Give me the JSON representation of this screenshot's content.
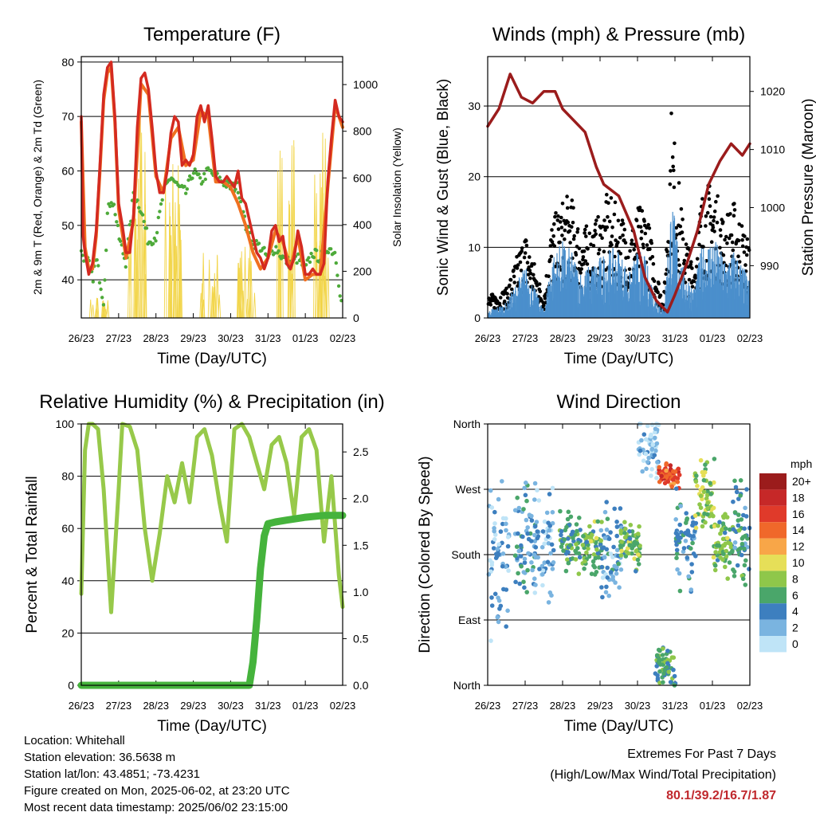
{
  "x_tick_labels": [
    "26/23",
    "27/23",
    "28/23",
    "29/23",
    "30/23",
    "31/23",
    "01/23",
    "02/23"
  ],
  "charts": [
    {
      "id": "temperature",
      "title": "Temperature (F)",
      "xlabel": "Time (Day/UTC)",
      "ylabel": "2m & 9m T (Red, Orange) & 2m Td (Green)",
      "ylabel_right": "Solar Insolation (Yellow)",
      "yticks": [
        "40",
        "50",
        "60",
        "70",
        "80"
      ],
      "yticks_right": [
        "0",
        "200",
        "400",
        "600",
        "800",
        "1000"
      ]
    },
    {
      "id": "winds",
      "title": "Winds (mph) & Pressure (mb)",
      "xlabel": "Time (Day/UTC)",
      "ylabel": "Sonic Wind & Gust (Blue, Black)",
      "ylabel_right": "Station Pressure (Maroon)",
      "yticks": [
        "0",
        "10",
        "20",
        "30"
      ],
      "yticks_right": [
        "990",
        "1000",
        "1010",
        "1020"
      ]
    },
    {
      "id": "humidity",
      "title": "Relative Humidity (%) & Precipitation (in)",
      "xlabel": "Time (Day/UTC)",
      "ylabel": "Percent & Total Rainfall",
      "yticks": [
        "0",
        "20",
        "40",
        "60",
        "80",
        "100"
      ],
      "yticks_right": [
        "0.0",
        "0.5",
        "1.0",
        "1.5",
        "2.0",
        "2.5"
      ]
    },
    {
      "id": "direction",
      "title": "Wind Direction",
      "xlabel": "Time (Day/UTC)",
      "ylabel": "Direction (Colored By Speed)",
      "yticks": [
        "North",
        "East",
        "South",
        "West",
        "North"
      ],
      "legend_title": "mph",
      "legend_labels": [
        "20+",
        "18",
        "16",
        "14",
        "12",
        "10",
        "8",
        "6",
        "4",
        "2",
        "0"
      ]
    }
  ],
  "chart_data": [
    {
      "type": "line",
      "title": "Temperature (F)",
      "x_ticks": [
        "26/23",
        "27/23",
        "28/23",
        "29/23",
        "30/23",
        "31/23",
        "01/23",
        "02/23"
      ],
      "xlabel": "Time (Day/UTC)",
      "ylabel": "2m & 9m T (Red, Orange) & 2m Td (Green)",
      "ylim": [
        33,
        81
      ],
      "y2label": "Solar Insolation (Yellow)",
      "y2lim": [
        0,
        1120
      ],
      "series": [
        {
          "color": "#d42a20",
          "axis": "left",
          "x": [
            0,
            0.05,
            0.1,
            0.2,
            0.3,
            0.4,
            0.5,
            0.6,
            0.7,
            0.8,
            0.9,
            1.0,
            1.1,
            1.2,
            1.3,
            1.4,
            1.5,
            1.6,
            1.7,
            1.8,
            1.9,
            2.0,
            2.1,
            2.2,
            2.3,
            2.4,
            2.5,
            2.6,
            2.7,
            2.8,
            2.9,
            3.0,
            3.1,
            3.2,
            3.3,
            3.4,
            3.5,
            3.6,
            3.7,
            3.8,
            3.9,
            4.0,
            4.1,
            4.2,
            4.3,
            4.4,
            4.5,
            4.6,
            4.7,
            4.8,
            4.9,
            5.0,
            5.1,
            5.2,
            5.3,
            5.4,
            5.5,
            5.6,
            5.7,
            5.8,
            5.9,
            6.0,
            6.1,
            6.2,
            6.3,
            6.4,
            6.5,
            6.6,
            6.7,
            6.8,
            6.9,
            7.0
          ],
          "y": [
            70,
            48,
            45,
            41,
            43,
            49,
            61,
            74,
            79,
            80,
            70,
            54,
            50,
            45,
            45,
            52,
            68,
            77,
            78,
            75,
            68,
            60,
            56,
            56,
            60,
            67,
            70,
            69,
            61,
            62,
            61,
            63,
            70,
            72,
            69,
            72,
            66,
            59,
            58,
            58,
            59,
            58,
            57,
            60,
            55,
            54,
            51,
            48,
            45,
            44,
            42,
            44,
            49,
            50,
            47,
            48,
            43,
            42,
            44,
            49,
            46,
            41,
            41,
            42,
            41,
            41,
            43,
            58,
            66,
            73,
            70,
            69
          ]
        },
        {
          "color": "#f07020",
          "axis": "left",
          "x": [
            0,
            0.1,
            0.2,
            0.3,
            0.4,
            0.5,
            0.6,
            0.7,
            0.8,
            0.9,
            1.0,
            1.2,
            1.4,
            1.6,
            1.8,
            2.0,
            2.2,
            2.4,
            2.6,
            2.8,
            3.0,
            3.2,
            3.4,
            3.6,
            3.8,
            4.0,
            4.2,
            4.4,
            4.6,
            4.8,
            5.0,
            5.2,
            5.4,
            5.6,
            5.8,
            6.0,
            6.2,
            6.4,
            6.6,
            6.8,
            7.0
          ],
          "y": [
            69,
            46,
            42,
            42,
            48,
            60,
            73,
            78,
            79,
            69,
            53,
            44,
            51,
            76,
            74,
            59,
            56,
            66,
            68,
            61,
            62,
            71,
            70,
            58,
            58,
            57,
            54,
            50,
            45,
            42,
            44,
            49,
            47,
            42,
            48,
            40,
            41,
            41,
            57,
            72,
            68
          ]
        },
        {
          "color": "#4eaa3a",
          "axis": "left",
          "x": [
            0,
            0.1,
            0.2,
            0.3,
            0.4,
            0.5,
            0.6,
            0.7,
            0.8,
            0.9,
            1.0,
            1.2,
            1.4,
            1.6,
            1.8,
            2.0,
            2.2,
            2.4,
            2.6,
            2.8,
            3.0,
            3.2,
            3.4,
            3.6,
            3.8,
            4.0,
            4.2,
            4.4,
            4.6,
            4.8,
            5.0,
            5.2,
            5.4,
            5.6,
            5.8,
            6.0,
            6.2,
            6.4,
            6.6,
            6.8,
            7.0
          ],
          "y": [
            45,
            44,
            43,
            40,
            44,
            40,
            36,
            52,
            55,
            53,
            48,
            43,
            56,
            53,
            47,
            48,
            56,
            59,
            57,
            56,
            60,
            58,
            60,
            59,
            58,
            57,
            57,
            50,
            47,
            46,
            44,
            46,
            44,
            43,
            44,
            42,
            45,
            44,
            46,
            45,
            34
          ]
        },
        {
          "color": "#f0d040",
          "axis": "right",
          "peaks_x": [
            0.5,
            1.5,
            2.45,
            3.45,
            4.45,
            5.45,
            6.4
          ],
          "peaks_y": [
            120,
            1020,
            880,
            380,
            360,
            1080,
            960
          ]
        }
      ]
    },
    {
      "type": "scatter",
      "title": "Winds (mph) & Pressure (mb)",
      "x_ticks": [
        "26/23",
        "27/23",
        "28/23",
        "29/23",
        "30/23",
        "31/23",
        "01/23",
        "02/23"
      ],
      "xlabel": "Time (Day/UTC)",
      "ylabel": "Sonic Wind & Gust (Blue, Black)",
      "ylim": [
        0,
        37
      ],
      "y2label": "Station Pressure (Maroon)",
      "y2lim": [
        981,
        1026
      ],
      "series": [
        {
          "name": "Gust",
          "color": "#000000",
          "x": [
            0,
            0.5,
            1.0,
            1.5,
            1.7,
            2.0,
            2.2,
            2.5,
            3.0,
            3.2,
            3.5,
            3.8,
            4.0,
            4.2,
            4.5,
            4.7,
            4.9,
            5.2,
            5.5,
            5.7,
            6.0,
            6.3,
            6.6,
            7.0
          ],
          "y": [
            3,
            4,
            12,
            3,
            13,
            16,
            17,
            12,
            14,
            17,
            15,
            12,
            15,
            16,
            7,
            2,
            29,
            14,
            7,
            17,
            19,
            14,
            16,
            10
          ]
        },
        {
          "name": "Wind",
          "color": "#4b8fcc",
          "x": [
            0,
            0.5,
            1.0,
            1.5,
            1.7,
            2.0,
            2.2,
            2.5,
            3.0,
            3.2,
            3.5,
            3.8,
            4.0,
            4.2,
            4.5,
            4.7,
            4.9,
            5.2,
            5.5,
            5.7,
            6.0,
            6.3,
            6.6,
            7.0
          ],
          "y": [
            1,
            2,
            7,
            1,
            8,
            10,
            9,
            6,
            8,
            9,
            9,
            6,
            9,
            8,
            3,
            1,
            16,
            7,
            4,
            9,
            11,
            8,
            9,
            5
          ]
        },
        {
          "name": "Pressure",
          "color": "#9b1c1c",
          "axis": "right",
          "x": [
            0,
            0.3,
            0.6,
            0.9,
            1.2,
            1.5,
            1.8,
            2.0,
            2.3,
            2.6,
            2.9,
            3.1,
            3.5,
            3.9,
            4.2,
            4.5,
            4.8,
            5.0,
            5.3,
            5.6,
            5.9,
            6.2,
            6.5,
            6.8,
            7.0
          ],
          "y": [
            1014,
            1017,
            1023,
            1019,
            1018,
            1020,
            1020,
            1017,
            1015,
            1013,
            1007,
            1004,
            1002,
            996,
            988,
            984,
            982,
            985,
            990,
            996,
            1004,
            1008,
            1011,
            1009,
            1011
          ]
        }
      ]
    },
    {
      "type": "line",
      "title": "Relative Humidity (%) & Precipitation (in)",
      "x_ticks": [
        "26/23",
        "27/23",
        "28/23",
        "29/23",
        "30/23",
        "31/23",
        "01/23",
        "02/23"
      ],
      "xlabel": "Time (Day/UTC)",
      "ylabel": "Percent & Total Rainfall",
      "ylim": [
        0,
        100
      ],
      "y2lim": [
        0,
        2.8
      ],
      "series": [
        {
          "name": "RH",
          "color": "#97c94a",
          "x": [
            0,
            0.1,
            0.2,
            0.3,
            0.45,
            0.6,
            0.8,
            1.0,
            1.1,
            1.3,
            1.5,
            1.7,
            1.9,
            2.1,
            2.3,
            2.5,
            2.7,
            2.9,
            3.1,
            3.3,
            3.5,
            3.7,
            3.9,
            4.1,
            4.3,
            4.5,
            4.7,
            4.9,
            5.1,
            5.3,
            5.5,
            5.7,
            5.9,
            6.1,
            6.3,
            6.5,
            6.7,
            6.9,
            7.0
          ],
          "y": [
            35,
            90,
            100,
            100,
            98,
            75,
            28,
            75,
            100,
            99,
            90,
            60,
            40,
            58,
            80,
            70,
            85,
            70,
            95,
            98,
            88,
            70,
            55,
            98,
            100,
            95,
            85,
            75,
            92,
            95,
            85,
            65,
            95,
            98,
            90,
            55,
            80,
            42,
            30
          ]
        },
        {
          "name": "Precip",
          "color": "#45b33c",
          "axis": "right",
          "x": [
            0,
            1,
            2,
            3,
            4,
            4.5,
            4.6,
            4.7,
            4.8,
            4.9,
            5.0,
            5.2,
            5.5,
            6.0,
            6.5,
            7.0
          ],
          "y": [
            0,
            0,
            0,
            0,
            0,
            0,
            0.25,
            0.7,
            1.25,
            1.6,
            1.73,
            1.75,
            1.77,
            1.8,
            1.82,
            1.82
          ]
        }
      ]
    },
    {
      "type": "scatter",
      "title": "Wind Direction",
      "x_ticks": [
        "26/23",
        "27/23",
        "28/23",
        "29/23",
        "30/23",
        "31/23",
        "01/23",
        "02/23"
      ],
      "xlabel": "Time (Day/UTC)",
      "ylabel": "Direction (Colored By Speed)",
      "y_categories": [
        "North",
        "East",
        "South",
        "West",
        "North"
      ],
      "ylim": [
        0,
        360
      ],
      "colorbar": {
        "title": "mph",
        "labels": [
          "20+",
          "18",
          "16",
          "14",
          "12",
          "10",
          "8",
          "6",
          "4",
          "2",
          "0"
        ],
        "colors": [
          "#9b1c1c",
          "#c62828",
          "#e03a2a",
          "#f0682a",
          "#f8a648",
          "#e6df58",
          "#8fc74a",
          "#4aa66a",
          "#3d7fbf",
          "#7ab4e0",
          "#bfe4f7"
        ]
      },
      "clusters": [
        {
          "x": 0.3,
          "dir": 180,
          "spread": 110,
          "speed": 2
        },
        {
          "x": 1.0,
          "dir": 200,
          "spread": 70,
          "speed": 4
        },
        {
          "x": 1.5,
          "dir": 190,
          "spread": 90,
          "speed": 2
        },
        {
          "x": 2.2,
          "dir": 195,
          "spread": 40,
          "speed": 6
        },
        {
          "x": 2.8,
          "dir": 190,
          "spread": 30,
          "speed": 7
        },
        {
          "x": 3.3,
          "dir": 185,
          "spread": 60,
          "speed": 3
        },
        {
          "x": 3.8,
          "dir": 195,
          "spread": 30,
          "speed": 7
        },
        {
          "x": 4.3,
          "dir": 330,
          "spread": 40,
          "speed": 1
        },
        {
          "x": 4.75,
          "dir": 25,
          "spread": 25,
          "speed": 6
        },
        {
          "x": 4.85,
          "dir": 290,
          "spread": 15,
          "speed": 15
        },
        {
          "x": 5.3,
          "dir": 195,
          "spread": 60,
          "speed": 4
        },
        {
          "x": 5.8,
          "dir": 260,
          "spread": 50,
          "speed": 8
        },
        {
          "x": 6.3,
          "dir": 195,
          "spread": 40,
          "speed": 7
        },
        {
          "x": 6.8,
          "dir": 210,
          "spread": 70,
          "speed": 5
        }
      ]
    }
  ],
  "footer": {
    "location": "Location: Whitehall",
    "elevation": "Station elevation: 36.5638 m",
    "latlon": "Station lat/lon: 43.4851; -73.4231",
    "created": "Figure created on Mon, 2025-06-02, at 23:20 UTC",
    "recent": "Most recent data timestamp: 2025/06/02 23:15:00",
    "extremes_title": "Extremes For Past 7 Days",
    "extremes_sub": "(High/Low/Max Wind/Total Precipitation)",
    "extremes_values": "80.1/39.2/16.7/1.87"
  }
}
